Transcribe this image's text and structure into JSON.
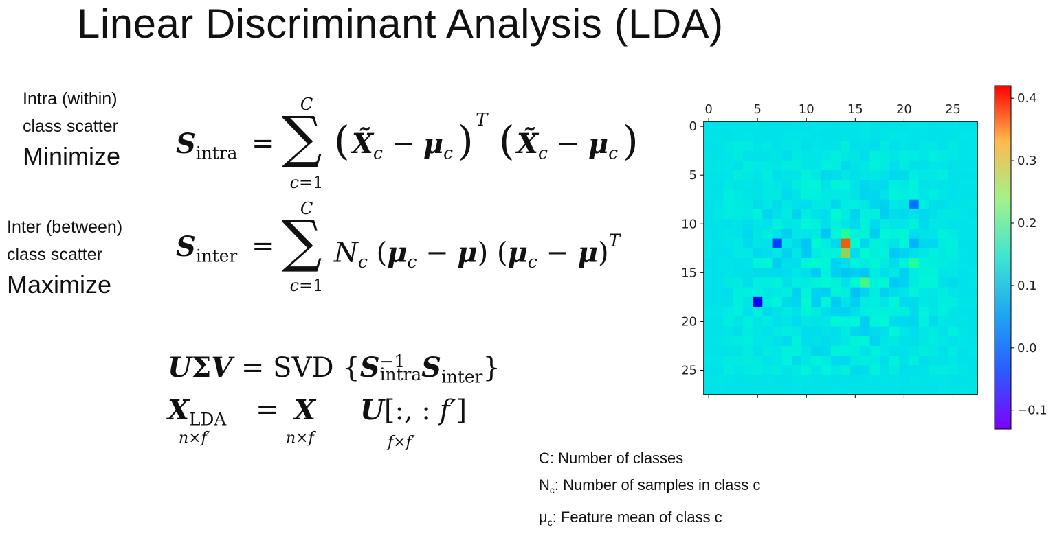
{
  "title": "Linear Discriminant Analysis (LDA)",
  "intra": {
    "line1": "Intra (within)",
    "line2": "class scatter",
    "goal": "Minimize"
  },
  "inter": {
    "line1": "Inter (between)",
    "line2": "class scatter",
    "goal": "Maximize"
  },
  "legend": {
    "c_text": "C: Number of classes",
    "nc_base": "N",
    "nc_sub": "c",
    "nc_text": ": Number of samples in class c",
    "mu_base": "μ",
    "mu_sub": "c",
    "mu_text": ": Feature mean of class c"
  },
  "chart_data": {
    "type": "heatmap",
    "x_ticks": [
      "0",
      "5",
      "10",
      "15",
      "20",
      "25"
    ],
    "y_ticks": [
      "0",
      "5",
      "10",
      "15",
      "20",
      "25"
    ],
    "colorbar_ticks": [
      "0.4",
      "0.3",
      "0.2",
      "0.1",
      "0.0",
      "−0.1"
    ],
    "colorbar_range": [
      -0.13,
      0.42
    ],
    "colormap": "rainbow",
    "size": [
      28,
      28
    ],
    "hot_cells": [
      {
        "row": 12,
        "col": 14,
        "value": 0.4
      },
      {
        "row": 13,
        "col": 14,
        "value": 0.3
      },
      {
        "row": 11,
        "col": 14,
        "value": 0.18
      },
      {
        "row": 12,
        "col": 7,
        "value": -0.12
      },
      {
        "row": 18,
        "col": 5,
        "value": -0.13
      },
      {
        "row": 8,
        "col": 21,
        "value": -0.1
      },
      {
        "row": 12,
        "col": 21,
        "value": -0.05
      },
      {
        "row": 16,
        "col": 16,
        "value": 0.22
      },
      {
        "row": 14,
        "col": 21,
        "value": 0.18
      }
    ]
  }
}
